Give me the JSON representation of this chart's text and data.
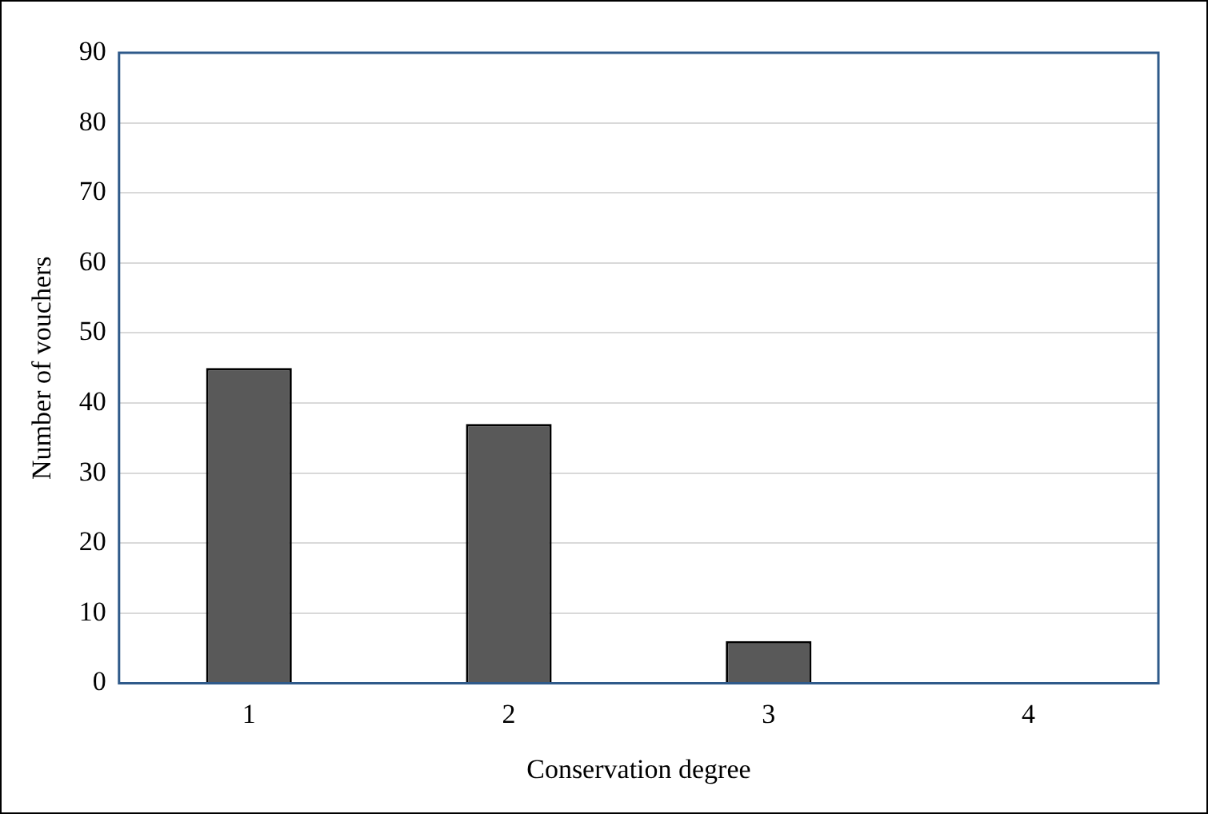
{
  "chart_data": {
    "type": "bar",
    "xlabel": "Conservation degree",
    "ylabel": "Number of vouchers",
    "categories": [
      "1",
      "2",
      "3",
      "4"
    ],
    "values": [
      45,
      37,
      6,
      0
    ],
    "color": "#595959",
    "ylim": [
      0,
      90
    ],
    "yticks": [
      0,
      10,
      20,
      30,
      40,
      50,
      60,
      70,
      80,
      90
    ],
    "grid": "y",
    "legend": false
  }
}
